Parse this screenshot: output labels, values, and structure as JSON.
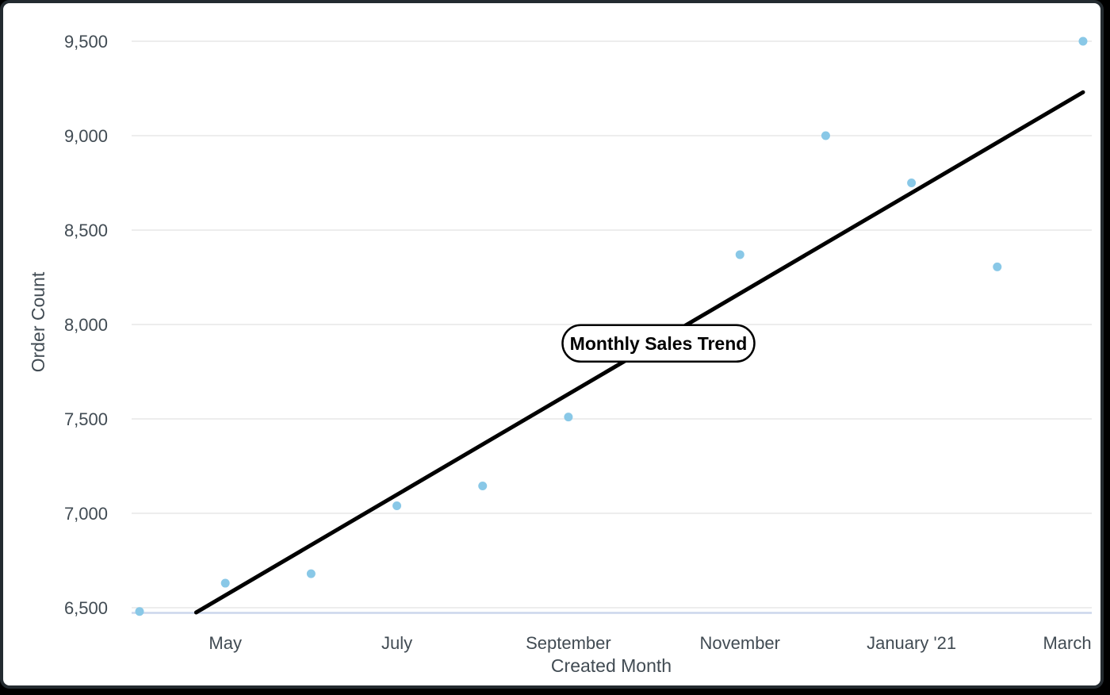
{
  "chart_data": {
    "type": "scatter",
    "title_annotation": "Monthly Sales Trend",
    "xlabel": "Created Month",
    "ylabel": "Order Count",
    "legend": "none",
    "grid": true,
    "x_axis": {
      "tick_labels": [
        {
          "label": "May",
          "month_index": 1
        },
        {
          "label": "July",
          "month_index": 3
        },
        {
          "label": "September",
          "month_index": 5
        },
        {
          "label": "November",
          "month_index": 7
        },
        {
          "label": "January '21",
          "month_index": 9
        },
        {
          "label": "March",
          "month_index": 11
        }
      ]
    },
    "y_axis": {
      "min": 6500,
      "max": 9500,
      "tick_labels": [
        {
          "label": "6,500",
          "value": 6500
        },
        {
          "label": "7,000",
          "value": 7000
        },
        {
          "label": "7,500",
          "value": 7500
        },
        {
          "label": "8,000",
          "value": 8000
        },
        {
          "label": "8,500",
          "value": 8500
        },
        {
          "label": "9,000",
          "value": 9000
        },
        {
          "label": "9,500",
          "value": 9500
        }
      ]
    },
    "points": [
      {
        "month": "April '20",
        "month_index": 0,
        "value": 6480
      },
      {
        "month": "May '20",
        "month_index": 1,
        "value": 6630
      },
      {
        "month": "June '20",
        "month_index": 2,
        "value": 6680
      },
      {
        "month": "July '20",
        "month_index": 3,
        "value": 7040
      },
      {
        "month": "August '20",
        "month_index": 4,
        "value": 7145
      },
      {
        "month": "September '20",
        "month_index": 5,
        "value": 7510
      },
      {
        "month": "November '20",
        "month_index": 7,
        "value": 8370
      },
      {
        "month": "December '20",
        "month_index": 8,
        "value": 9000
      },
      {
        "month": "January '21",
        "month_index": 9,
        "value": 8750
      },
      {
        "month": "February '21",
        "month_index": 10,
        "value": 8305
      },
      {
        "month": "March '21",
        "month_index": 11,
        "value": 9500
      }
    ],
    "trendline": {
      "start_month_index": 0.66,
      "start_value": 6475,
      "end_month_index": 11,
      "end_value": 9230
    },
    "annotation_position": {
      "month_index": 6.05,
      "value": 7900
    },
    "colors": {
      "point": "#89c8e7",
      "trendline": "#000000",
      "gridline": "#e7e7e7",
      "baseline": "#ccd6ec",
      "axis_text": "#414b53",
      "annotation_border": "#000000",
      "annotation_fill": "#ffffff",
      "annotation_text": "#000000"
    }
  }
}
